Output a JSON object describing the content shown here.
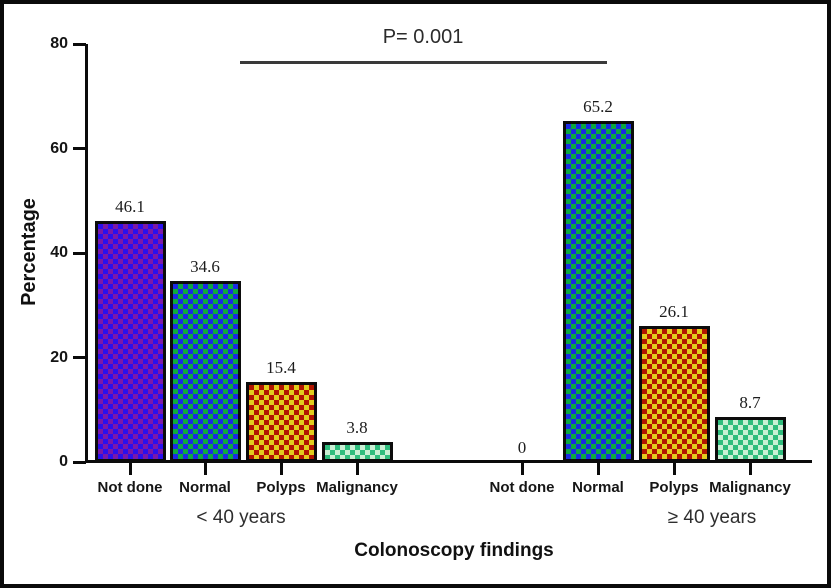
{
  "chart_data": {
    "type": "bar",
    "title": "",
    "xlabel": "Colonoscopy findings",
    "ylabel": "Percentage",
    "ylim": [
      0,
      80
    ],
    "ytick_labels": [
      "0",
      "20",
      "40",
      "60",
      "80"
    ],
    "grid": false,
    "legend": "none",
    "annotation": {
      "text": "P= 0.001",
      "between": [
        "< 40 years",
        "≥ 40 years"
      ]
    },
    "categories": [
      "Not done",
      "Normal",
      "Polyps",
      "Malignancy"
    ],
    "bar_patterns": [
      {
        "category": "Not done",
        "base_color": "#2a10ee",
        "check_color": "#7c18a8"
      },
      {
        "category": "Normal",
        "base_color": "#1b2ae4",
        "check_color": "#0caa3f"
      },
      {
        "category": "Polyps",
        "base_color": "#b21500",
        "check_color": "#e2cd1d"
      },
      {
        "category": "Malignancy",
        "base_color": "#2fbd7d",
        "check_color": "#c9f0d4"
      }
    ],
    "groups": [
      {
        "label": "< 40 years",
        "values": [
          46.1,
          34.6,
          15.4,
          3.8
        ],
        "value_labels": [
          "46.1",
          "34.6",
          "15.4",
          "3.8"
        ]
      },
      {
        "label": "≥ 40 years",
        "values": [
          0,
          65.2,
          26.1,
          8.7
        ],
        "value_labels": [
          "0",
          "65.2",
          "26.1",
          "8.7"
        ]
      }
    ]
  }
}
